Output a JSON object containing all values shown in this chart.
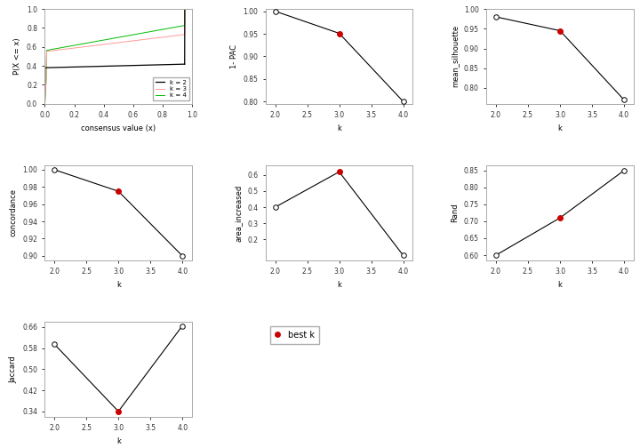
{
  "ecdf": {
    "ylabel": "P(X <= x)",
    "xlabel": "consensus value (x)",
    "legend_k2": "k = 2",
    "legend_k3": "k = 3",
    "legend_k4": "k = 4",
    "k2_color": "#000000",
    "k3_color": "#ff9999",
    "k4_color": "#00bb00"
  },
  "pac": {
    "k": [
      2,
      3,
      4
    ],
    "y": [
      1.0,
      0.951,
      0.8
    ],
    "best_k": 3,
    "ylabel": "1- PAC",
    "xlabel": "k",
    "yticks": [
      0.8,
      0.85,
      0.9,
      0.95,
      1.0
    ],
    "ylim": [
      0.795,
      1.005
    ]
  },
  "silhouette": {
    "k": [
      2,
      3,
      4
    ],
    "y": [
      0.98,
      0.945,
      0.77
    ],
    "best_k": 3,
    "ylabel": "mean_silhouette",
    "xlabel": "k",
    "yticks": [
      0.8,
      0.85,
      0.9,
      0.95,
      1.0
    ],
    "ylim": [
      0.76,
      1.0
    ]
  },
  "concordance": {
    "k": [
      2,
      3,
      4
    ],
    "y": [
      1.0,
      0.975,
      0.9
    ],
    "best_k": 3,
    "ylabel": "concordance",
    "xlabel": "k",
    "yticks": [
      0.9,
      0.92,
      0.94,
      0.96,
      0.98,
      1.0
    ],
    "ylim": [
      0.895,
      1.005
    ]
  },
  "area": {
    "k": [
      2,
      3,
      4
    ],
    "y": [
      0.4,
      0.62,
      0.1
    ],
    "best_k": 3,
    "ylabel": "area_increased",
    "xlabel": "k",
    "yticks": [
      0.2,
      0.3,
      0.4,
      0.5,
      0.6
    ],
    "ylim": [
      0.07,
      0.66
    ]
  },
  "rand": {
    "k": [
      2,
      3,
      4
    ],
    "y": [
      0.6,
      0.71,
      0.85
    ],
    "best_k": 3,
    "ylabel": "Rand",
    "xlabel": "k",
    "yticks": [
      0.6,
      0.65,
      0.7,
      0.75,
      0.8,
      0.85
    ],
    "ylim": [
      0.585,
      0.865
    ]
  },
  "jaccard": {
    "k": [
      2,
      3,
      4
    ],
    "y": [
      0.595,
      0.34,
      0.665
    ],
    "best_k": 3,
    "ylabel": "Jaccard",
    "xlabel": "k",
    "yticks": [
      0.34,
      0.42,
      0.5,
      0.58,
      0.66
    ],
    "ylim": [
      0.32,
      0.68
    ]
  },
  "best_dot_color": "#cc0000",
  "line_color": "#000000",
  "spine_color": "#aaaaaa"
}
